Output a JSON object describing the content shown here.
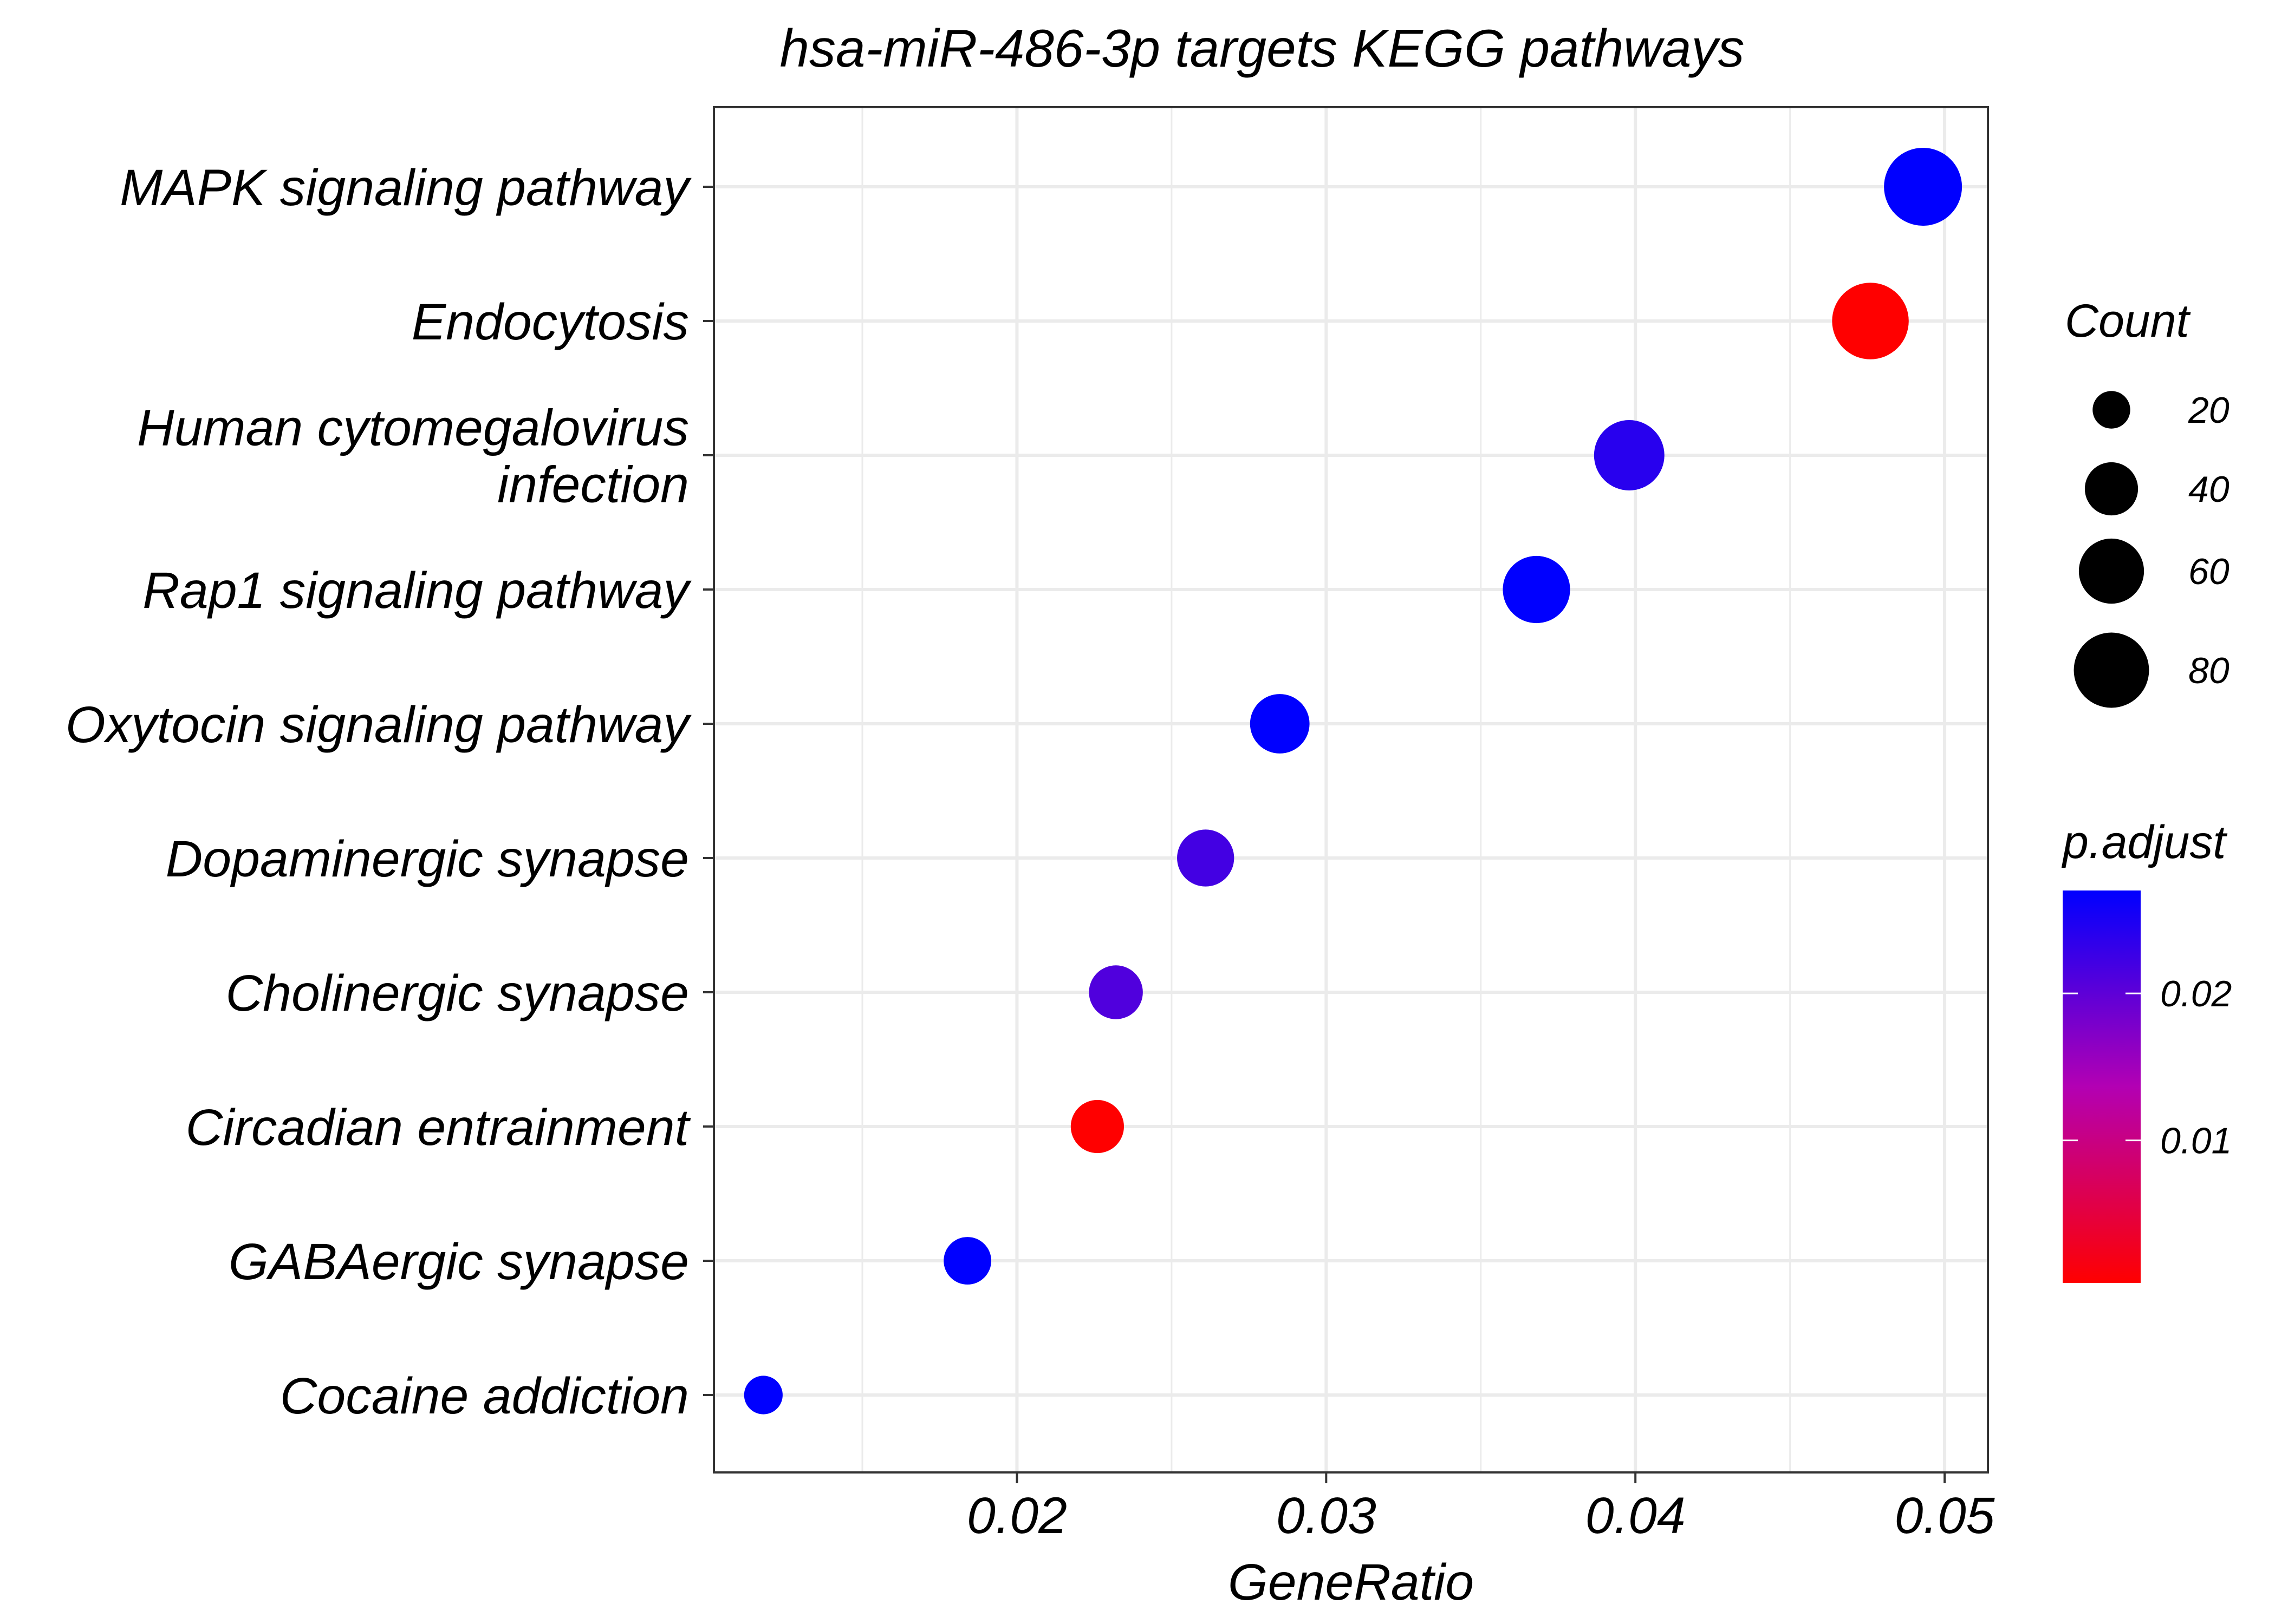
{
  "chart_data": {
    "type": "scatter",
    "title": "hsa-miR-486-3p targets KEGG pathways",
    "xlabel": "GeneRatio",
    "ylabel": "",
    "xlim": [
      0.0102,
      0.0514
    ],
    "xticks": [
      0.02,
      0.03,
      0.04,
      0.05
    ],
    "xtick_labels": [
      "0.02",
      "0.03",
      "0.04",
      "0.05"
    ],
    "grid": true,
    "categories": [
      [
        "MAPK signaling pathway"
      ],
      [
        "Endocytosis"
      ],
      [
        "Human cytomegalovirus",
        "infection"
      ],
      [
        "Rap1 signaling pathway"
      ],
      [
        "Oxytocin signaling pathway"
      ],
      [
        "Dopaminergic synapse"
      ],
      [
        "Cholinergic synapse"
      ],
      [
        "Circadian entrainment"
      ],
      [
        "GABAergic synapse"
      ],
      [
        "Cocaine addiction"
      ]
    ],
    "points": [
      {
        "gene_ratio": 0.0493,
        "count": 86,
        "p_adjust": 0.027
      },
      {
        "gene_ratio": 0.0476,
        "count": 83,
        "p_adjust": 0.0003
      },
      {
        "gene_ratio": 0.0398,
        "count": 70,
        "p_adjust": 0.024
      },
      {
        "gene_ratio": 0.0368,
        "count": 64,
        "p_adjust": 0.027
      },
      {
        "gene_ratio": 0.0285,
        "count": 50,
        "p_adjust": 0.027
      },
      {
        "gene_ratio": 0.0261,
        "count": 46,
        "p_adjust": 0.022
      },
      {
        "gene_ratio": 0.0232,
        "count": 41,
        "p_adjust": 0.021
      },
      {
        "gene_ratio": 0.0226,
        "count": 40,
        "p_adjust": 0.0003
      },
      {
        "gene_ratio": 0.0184,
        "count": 32,
        "p_adjust": 0.027
      },
      {
        "gene_ratio": 0.0118,
        "count": 21,
        "p_adjust": 0.027
      }
    ],
    "size_legend": {
      "title": "Count",
      "values": [
        20,
        40,
        60,
        80
      ],
      "labels": [
        "20",
        "40",
        "60",
        "80"
      ]
    },
    "color_legend": {
      "title": "p.adjust",
      "range": [
        0.0003,
        0.027
      ],
      "ticks": [
        0.01,
        0.02
      ],
      "tick_labels": [
        "0.01",
        "0.02"
      ],
      "low_color": "#ff0000",
      "high_color": "#0000ff"
    },
    "legend_position": "right"
  }
}
